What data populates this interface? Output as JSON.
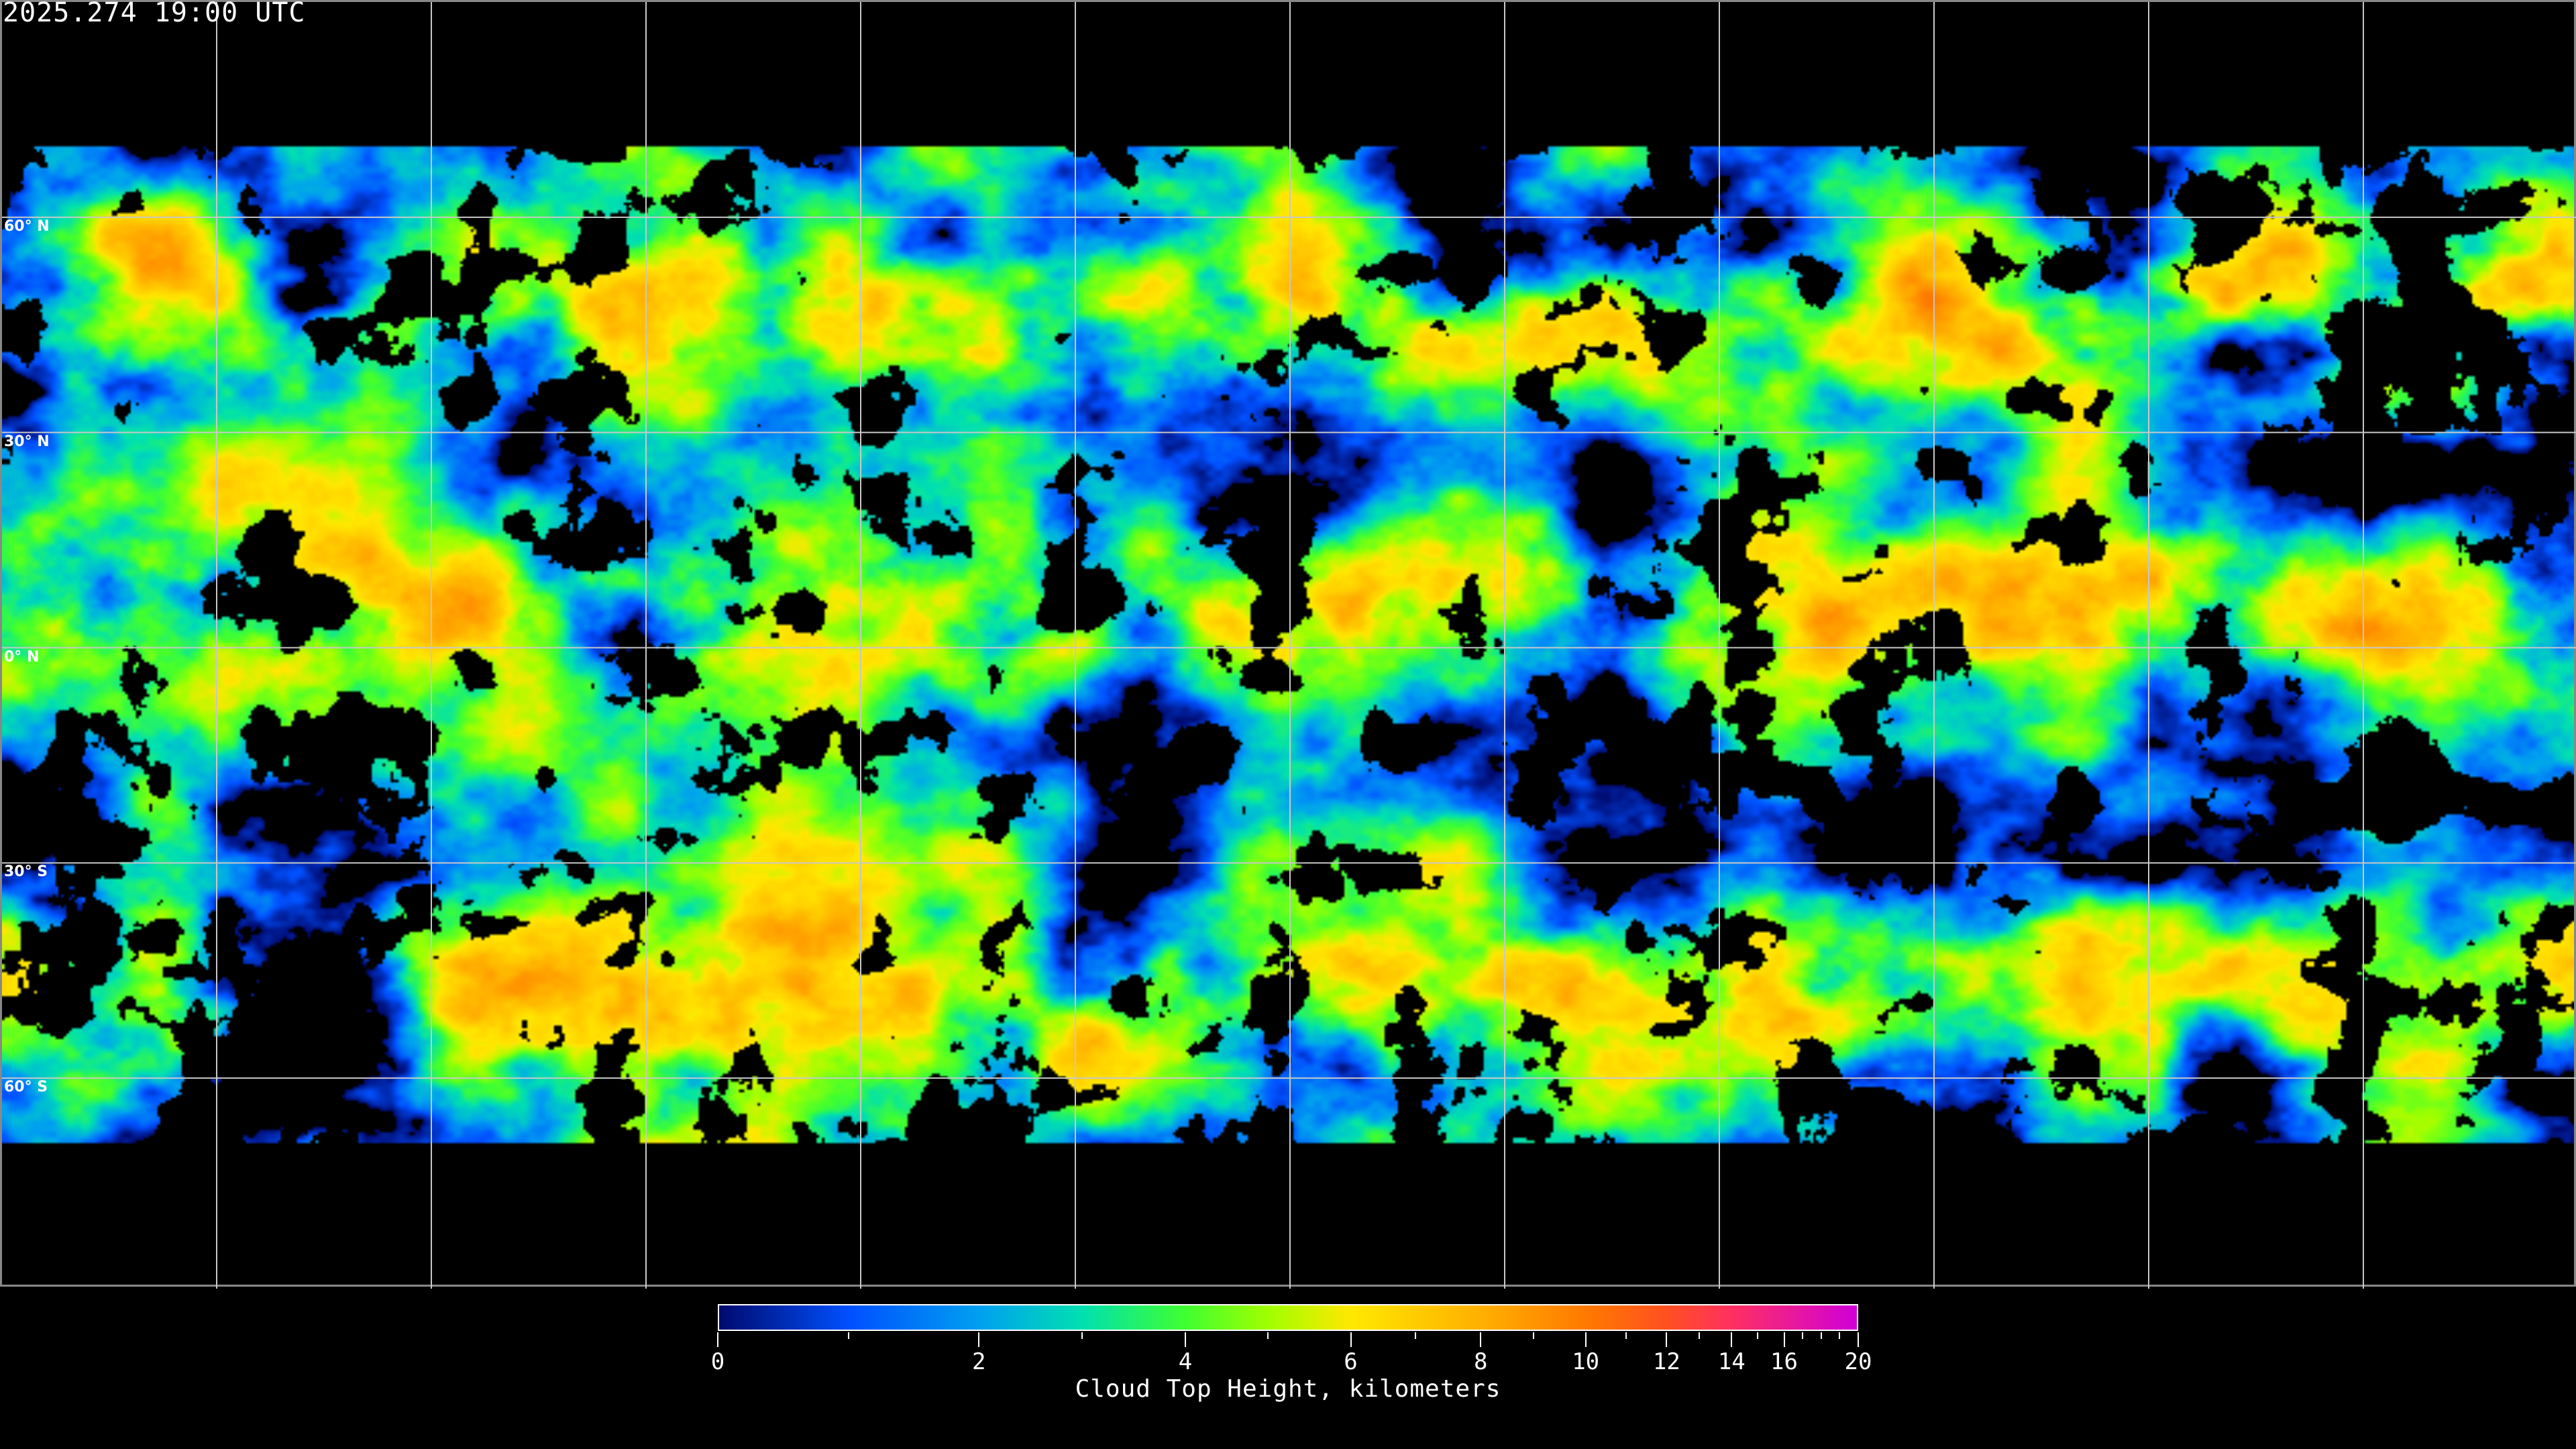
{
  "header": {
    "timestamp": "2025.274 19:00 UTC"
  },
  "map": {
    "projection": "equirectangular",
    "latitude_labels": [
      "60° N",
      "30° N",
      "0° N",
      "30° S",
      "60° S"
    ],
    "latitudes": [
      60,
      30,
      0,
      -30,
      -60
    ],
    "longitude_gridlines_deg": [
      -150,
      -120,
      -90,
      -60,
      -30,
      0,
      30,
      60,
      90,
      120,
      150
    ],
    "gridline_color": "#c8c8c8",
    "coastline_color": "#ffffff",
    "no_data_color": "#000000"
  },
  "colorbar": {
    "label": "Cloud Top Height, kilometers",
    "min": 0,
    "max": 20,
    "major_ticks": [
      0,
      2,
      4,
      6,
      8,
      10,
      12,
      14,
      16,
      20
    ],
    "minor_ticks": [
      1,
      3,
      5,
      7,
      9,
      11,
      13,
      15,
      17,
      18,
      19
    ],
    "colors": [
      {
        "value": 0,
        "color": "#000a6e"
      },
      {
        "value": 1,
        "color": "#0050ff"
      },
      {
        "value": 2,
        "color": "#00a0f0"
      },
      {
        "value": 3,
        "color": "#00e0b0"
      },
      {
        "value": 4,
        "color": "#40ff30"
      },
      {
        "value": 5,
        "color": "#a0ff00"
      },
      {
        "value": 6,
        "color": "#ffe800"
      },
      {
        "value": 8,
        "color": "#ffb000"
      },
      {
        "value": 10,
        "color": "#ff7a00"
      },
      {
        "value": 12,
        "color": "#ff5020"
      },
      {
        "value": 14,
        "color": "#ff3060"
      },
      {
        "value": 20,
        "color": "#d000d8"
      }
    ]
  }
}
